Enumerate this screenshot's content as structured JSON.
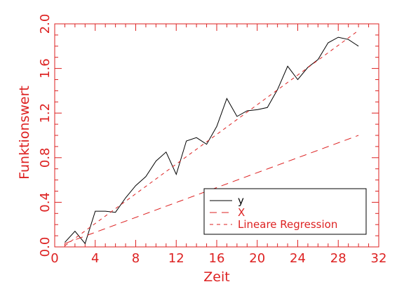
{
  "chart_data": {
    "type": "line",
    "title": "",
    "xlabel": "Zeit",
    "ylabel": "Funktionswert",
    "xlim": [
      0,
      32
    ],
    "ylim": [
      0,
      2
    ],
    "xticks": [
      0,
      4,
      8,
      12,
      16,
      20,
      24,
      28,
      32
    ],
    "yticks": [
      0.0,
      0.4,
      0.8,
      1.2,
      1.6,
      2.0
    ],
    "xtick_labels": [
      "0",
      "4",
      "8",
      "12",
      "16",
      "20",
      "24",
      "28",
      "32"
    ],
    "ytick_labels": [
      "0.0",
      "0.4",
      "0.8",
      "1.2",
      "1.6",
      "2.0"
    ],
    "grid": false,
    "legend_position": "bottom-right",
    "axis_color": "#dd2222",
    "series": [
      {
        "name": "y",
        "style": "solid",
        "color": "#000000",
        "x": [
          1,
          2,
          3,
          4,
          5,
          6,
          7,
          8,
          9,
          10,
          11,
          12,
          13,
          14,
          15,
          16,
          17,
          18,
          19,
          20,
          21,
          22,
          23,
          24,
          25,
          26,
          27,
          28,
          29,
          30
        ],
        "y": [
          0.04,
          0.14,
          0.03,
          0.32,
          0.32,
          0.31,
          0.44,
          0.55,
          0.63,
          0.77,
          0.85,
          0.65,
          0.95,
          0.98,
          0.92,
          1.08,
          1.33,
          1.17,
          1.22,
          1.23,
          1.25,
          1.41,
          1.62,
          1.5,
          1.61,
          1.68,
          1.83,
          1.88,
          1.86,
          1.8
        ]
      },
      {
        "name": "X",
        "style": "dashed",
        "color": "#dd2222",
        "x": [
          1,
          30
        ],
        "y": [
          0.03,
          1.0
        ]
      },
      {
        "name": "Lineare Regression",
        "style": "dotted",
        "color": "#dd2222",
        "x": [
          1,
          30
        ],
        "y": [
          0.01,
          1.94
        ]
      }
    ]
  }
}
